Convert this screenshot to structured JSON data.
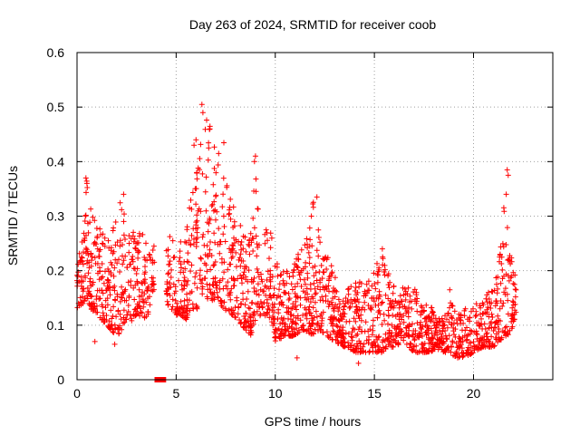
{
  "chart_data": {
    "type": "scatter",
    "title": "Day 263 of 2024, SRMTID for receiver coob",
    "xlabel": "GPS time / hours",
    "ylabel": "SRMTID / TECUs",
    "xlim": [
      0,
      24
    ],
    "ylim": [
      0,
      0.6
    ],
    "xticks": [
      0,
      5,
      10,
      15,
      20
    ],
    "xtick_labels": [
      "0",
      "5",
      "10",
      "15",
      "20"
    ],
    "yticks": [
      0,
      0.1,
      0.2,
      0.3,
      0.4,
      0.5,
      0.6
    ],
    "ytick_labels": [
      "0",
      "0.1",
      "0.2",
      "0.3",
      "0.4",
      "0.5",
      "0.6"
    ],
    "grid": true,
    "marker": "+",
    "color": "#ff0000",
    "data_gap": {
      "x": [
        4.0,
        4.4
      ],
      "y": 0
    },
    "series": [
      {
        "name": "SRMTID",
        "envelope": {
          "x": [
            0.0,
            0.3,
            0.5,
            0.7,
            1.0,
            1.5,
            2.0,
            2.3,
            2.6,
            3.0,
            3.5,
            3.9,
            4.5,
            5.0,
            5.5,
            5.8,
            6.1,
            6.4,
            6.7,
            7.0,
            7.4,
            7.8,
            8.3,
            8.8,
            9.0,
            9.4,
            9.8,
            10.0,
            10.5,
            11.0,
            11.5,
            12.0,
            12.3,
            12.6,
            13.0,
            13.5,
            14.0,
            14.5,
            15.0,
            15.4,
            15.7,
            16.0,
            16.5,
            17.0,
            17.5,
            18.0,
            18.5,
            18.7,
            19.0,
            19.5,
            20.0,
            20.5,
            21.0,
            21.3,
            21.6,
            21.8,
            22.0,
            22.2
          ],
          "lo": [
            0.13,
            0.14,
            0.15,
            0.13,
            0.12,
            0.1,
            0.08,
            0.09,
            0.1,
            0.12,
            0.11,
            0.16,
            0.14,
            0.12,
            0.11,
            0.13,
            0.13,
            0.16,
            0.14,
            0.15,
            0.13,
            0.12,
            0.1,
            0.08,
            0.11,
            0.12,
            0.11,
            0.07,
            0.08,
            0.08,
            0.09,
            0.08,
            0.09,
            0.08,
            0.07,
            0.06,
            0.05,
            0.05,
            0.05,
            0.05,
            0.06,
            0.06,
            0.07,
            0.05,
            0.05,
            0.05,
            0.05,
            0.05,
            0.04,
            0.04,
            0.05,
            0.06,
            0.06,
            0.07,
            0.08,
            0.08,
            0.1,
            0.13
          ],
          "hi": [
            0.22,
            0.26,
            0.37,
            0.32,
            0.28,
            0.27,
            0.32,
            0.34,
            0.28,
            0.27,
            0.27,
            0.27,
            0.27,
            0.25,
            0.26,
            0.37,
            0.45,
            0.51,
            0.47,
            0.43,
            0.44,
            0.33,
            0.29,
            0.27,
            0.41,
            0.28,
            0.3,
            0.22,
            0.2,
            0.22,
            0.26,
            0.34,
            0.27,
            0.24,
            0.19,
            0.16,
            0.18,
            0.18,
            0.2,
            0.24,
            0.21,
            0.17,
            0.17,
            0.17,
            0.14,
            0.13,
            0.11,
            0.17,
            0.13,
            0.13,
            0.14,
            0.15,
            0.17,
            0.22,
            0.38,
            0.28,
            0.22,
            0.19
          ]
        },
        "extremes": [
          [
            0.45,
            0.37
          ],
          [
            0.5,
            0.36
          ],
          [
            6.3,
            0.505
          ],
          [
            6.35,
            0.49
          ],
          [
            6.7,
            0.46
          ],
          [
            6.0,
            0.44
          ],
          [
            5.9,
            0.43
          ],
          [
            9.0,
            0.41
          ],
          [
            8.95,
            0.4
          ],
          [
            12.1,
            0.335
          ],
          [
            21.7,
            0.385
          ],
          [
            21.75,
            0.375
          ],
          [
            21.65,
            0.34
          ],
          [
            2.35,
            0.34
          ],
          [
            15.4,
            0.24
          ],
          [
            14.2,
            0.03
          ],
          [
            18.8,
            0.165
          ],
          [
            0.9,
            0.07
          ],
          [
            1.9,
            0.065
          ],
          [
            11.1,
            0.04
          ]
        ],
        "sample_count": 2200
      }
    ]
  }
}
